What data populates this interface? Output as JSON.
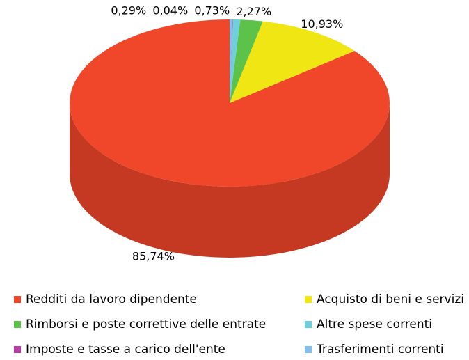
{
  "chart_data": {
    "type": "pie3d",
    "categories": [
      "Redditi da lavoro dipendente",
      "Acquisto di beni e servizi",
      "Rimborsi e poste correttive delle entrate",
      "Altre spese correnti",
      "Imposte e tasse a carico dell'ente",
      "Trasferimenti correnti"
    ],
    "values": [
      85.74,
      10.93,
      2.27,
      0.73,
      0.04,
      0.29
    ],
    "value_labels": [
      "85,74%",
      "10,93%",
      "2,27%",
      "0,73%",
      "0,04%",
      "0,29%"
    ],
    "colors": [
      "#f0462a",
      "#f0e614",
      "#5dc24a",
      "#6ed0de",
      "#b640a8",
      "#80c0ea"
    ],
    "legend": "bottom"
  }
}
